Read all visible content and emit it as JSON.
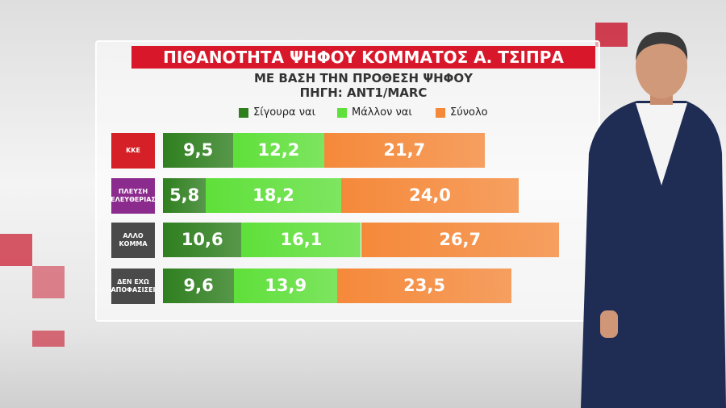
{
  "chart_data": {
    "type": "stacked-hbar",
    "title": "ΠΙΘΑΝΟΤΗΤΑ ΨΗΦΟΥ ΚΟΜΜΑΤΟΣ Α. ΤΣΙΠΡΑ",
    "subtitle": "ΜΕ ΒΑΣΗ ΤΗΝ ΠΡΟΘΕΣΗ ΨΗΦΟΥ",
    "source": "ΠΗΓΗ: ANT1/MARC",
    "categories": [
      "ΚΚΕ",
      "ΠΛΕΥΣΗ ΕΛΕΥΘΕΡΙΑΣ",
      "ΑΛΛΟ ΚΟΜΜΑ",
      "ΔΕΝ ΕΧΩ ΑΠΟΦΑΣΙΣΕΙ"
    ],
    "category_colors": [
      "#d42026",
      "#8c2b8e",
      "#4a4a4a",
      "#4a4a4a"
    ],
    "series": [
      {
        "name": "Σίγουρα ναι",
        "color": "#2f7f1f",
        "values": [
          9.5,
          5.8,
          10.6,
          9.6
        ],
        "value_labels": [
          "9,5",
          "5,8",
          "10,6",
          "9,6"
        ]
      },
      {
        "name": "Μάλλον ναι",
        "color": "#5fe03a",
        "values": [
          12.2,
          18.2,
          16.1,
          13.9
        ],
        "value_labels": [
          "12,2",
          "18,2",
          "16,1",
          "13,9"
        ]
      },
      {
        "name": "Σύνολο",
        "color": "#f5893a",
        "values": [
          21.7,
          24.0,
          26.7,
          23.5
        ],
        "value_labels": [
          "21,7",
          "24,0",
          "26,7",
          "23,5"
        ]
      }
    ]
  }
}
